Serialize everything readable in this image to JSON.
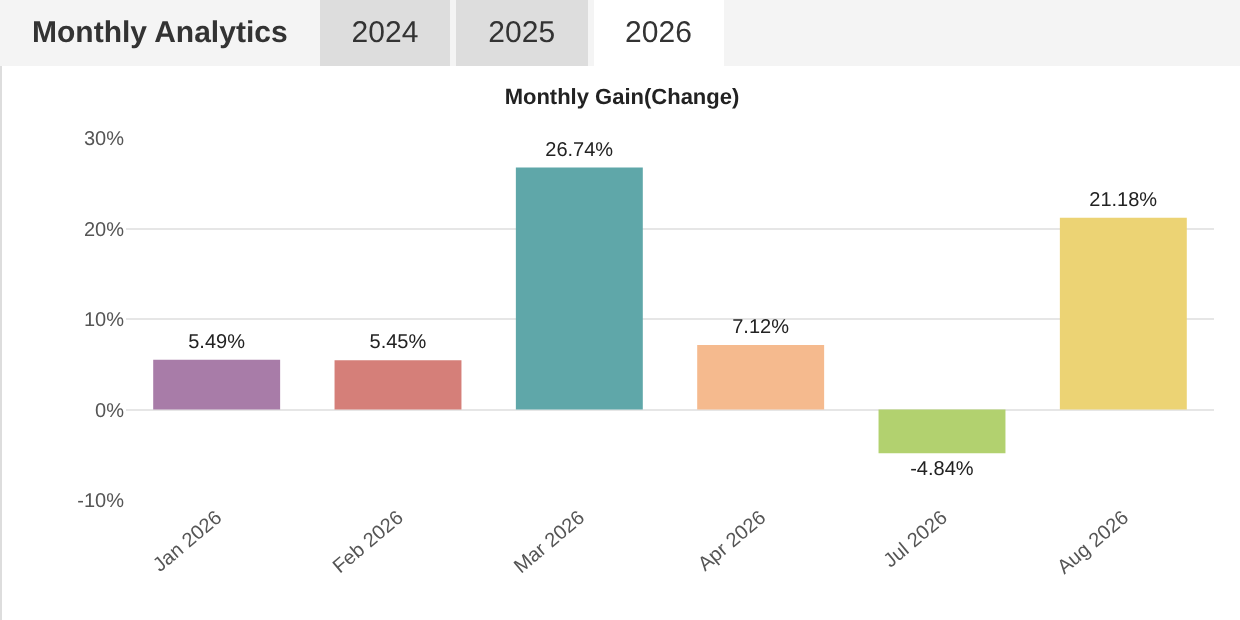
{
  "chart_data": {
    "type": "bar",
    "title": "Monthly Gain(Change)",
    "annotations": [
      "Monthly Analytics",
      "2024",
      "2025",
      "2026"
    ],
    "categories": [
      "Jan 2026",
      "Feb 2026",
      "Mar 2026",
      "Apr 2026",
      "Jul 2026",
      "Aug 2026"
    ],
    "values": [
      5.49,
      5.45,
      26.74,
      7.12,
      -4.84,
      21.18
    ],
    "colors": [
      "#a87ca8",
      "#d57f79",
      "#5fa7a9",
      "#f5ba8e",
      "#b2d16f",
      "#ecd374"
    ],
    "value_labels": [
      "5.49%",
      "5.45%",
      "26.74%",
      "7.12%",
      "-4.84%",
      "21.18%"
    ],
    "ylim": [
      -10,
      30
    ],
    "yticks": [
      {
        "value": -10,
        "label": "-10%"
      },
      {
        "value": 0,
        "label": "0%"
      },
      {
        "value": 10,
        "label": "10%"
      },
      {
        "value": 20,
        "label": "20%"
      },
      {
        "value": 30,
        "label": "30%"
      }
    ],
    "grid": true
  }
}
